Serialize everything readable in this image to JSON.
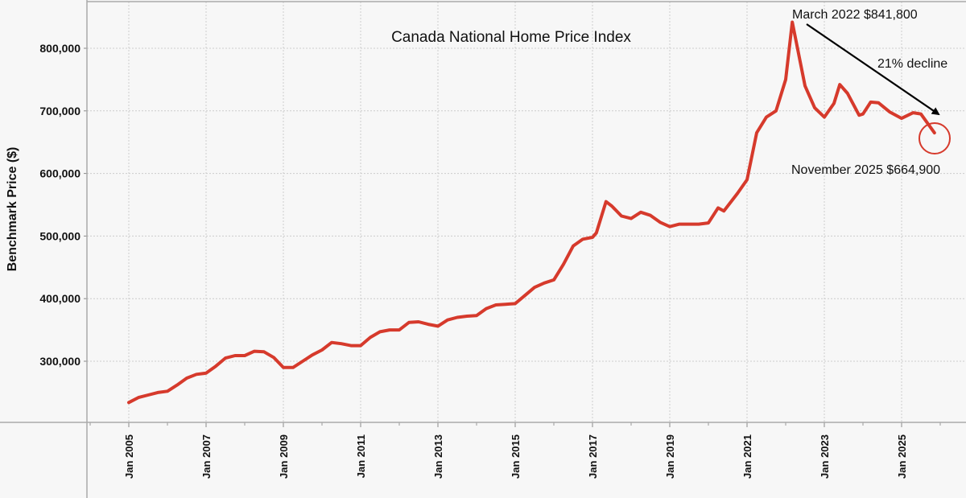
{
  "chart_data": {
    "type": "line",
    "title": "Canada National Home Price Index",
    "xlabel": "",
    "ylabel": "Benchmark Price ($)",
    "ylim": [
      200000,
      870000
    ],
    "xlim": [
      2003.9,
      2027.6
    ],
    "yticks": [
      300000,
      400000,
      500000,
      600000,
      700000,
      800000
    ],
    "ytick_labels": [
      "300,000",
      "400,000",
      "500,000",
      "600,000",
      "700,000",
      "800,000"
    ],
    "xticks": [
      2005,
      2007,
      2009,
      2011,
      2013,
      2015,
      2017,
      2019,
      2021,
      2023,
      2025
    ],
    "xtick_labels": [
      "Jan 2005",
      "Jan 2007",
      "Jan 2009",
      "Jan 2011",
      "Jan 2013",
      "Jan 2015",
      "Jan 2017",
      "Jan 2019",
      "Jan 2021",
      "Jan 2023",
      "Jan 2025"
    ],
    "grid": true,
    "line_color": "#d63a2c",
    "series": [
      {
        "x": [
          2005.0,
          2005.25,
          2005.5,
          2005.75,
          2006.0,
          2006.25,
          2006.5,
          2006.75,
          2007.0,
          2007.25,
          2007.5,
          2007.75,
          2008.0,
          2008.25,
          2008.5,
          2008.75,
          2009.0,
          2009.25,
          2009.5,
          2009.75,
          2010.0,
          2010.25,
          2010.5,
          2010.75,
          2011.0,
          2011.25,
          2011.5,
          2011.75,
          2012.0,
          2012.25,
          2012.5,
          2012.75,
          2013.0,
          2013.25,
          2013.5,
          2013.75,
          2014.0,
          2014.25,
          2014.5,
          2014.75,
          2015.0,
          2015.25,
          2015.5,
          2015.75,
          2016.0,
          2016.25,
          2016.5,
          2016.75,
          2017.0,
          2017.1,
          2017.35,
          2017.5,
          2017.75,
          2018.0,
          2018.25,
          2018.5,
          2018.75,
          2019.0,
          2019.25,
          2019.5,
          2019.75,
          2020.0,
          2020.25,
          2020.4,
          2020.75,
          2021.0,
          2021.25,
          2021.5,
          2021.75,
          2022.0,
          2022.17,
          2022.5,
          2022.75,
          2023.0,
          2023.25,
          2023.4,
          2023.6,
          2023.9,
          2024.0,
          2024.2,
          2024.4,
          2024.7,
          2025.0,
          2025.3,
          2025.5,
          2025.85
        ],
        "values": [
          234000,
          242000,
          246000,
          250000,
          252000,
          262000,
          273000,
          279000,
          281000,
          292000,
          305000,
          309000,
          309000,
          316000,
          315000,
          306000,
          290000,
          290000,
          300000,
          310000,
          318000,
          330000,
          328000,
          325000,
          325000,
          338000,
          347000,
          350000,
          350000,
          362000,
          363000,
          359000,
          356000,
          366000,
          370000,
          372000,
          373000,
          384000,
          390000,
          391000,
          392000,
          405000,
          418000,
          425000,
          430000,
          455000,
          484000,
          495000,
          498000,
          505000,
          555000,
          548000,
          532000,
          528000,
          538000,
          533000,
          522000,
          515000,
          519000,
          519000,
          519000,
          521000,
          545000,
          540000,
          568000,
          590000,
          665000,
          690000,
          700000,
          750000,
          841800,
          740000,
          705000,
          690000,
          712000,
          742000,
          728000,
          693000,
          695000,
          714000,
          713000,
          698000,
          688000,
          697000,
          695000,
          664900
        ]
      }
    ],
    "annotations": {
      "peak": "March 2022  $841,800",
      "decline": "21% decline",
      "latest": "November 2025  $664,900"
    }
  }
}
